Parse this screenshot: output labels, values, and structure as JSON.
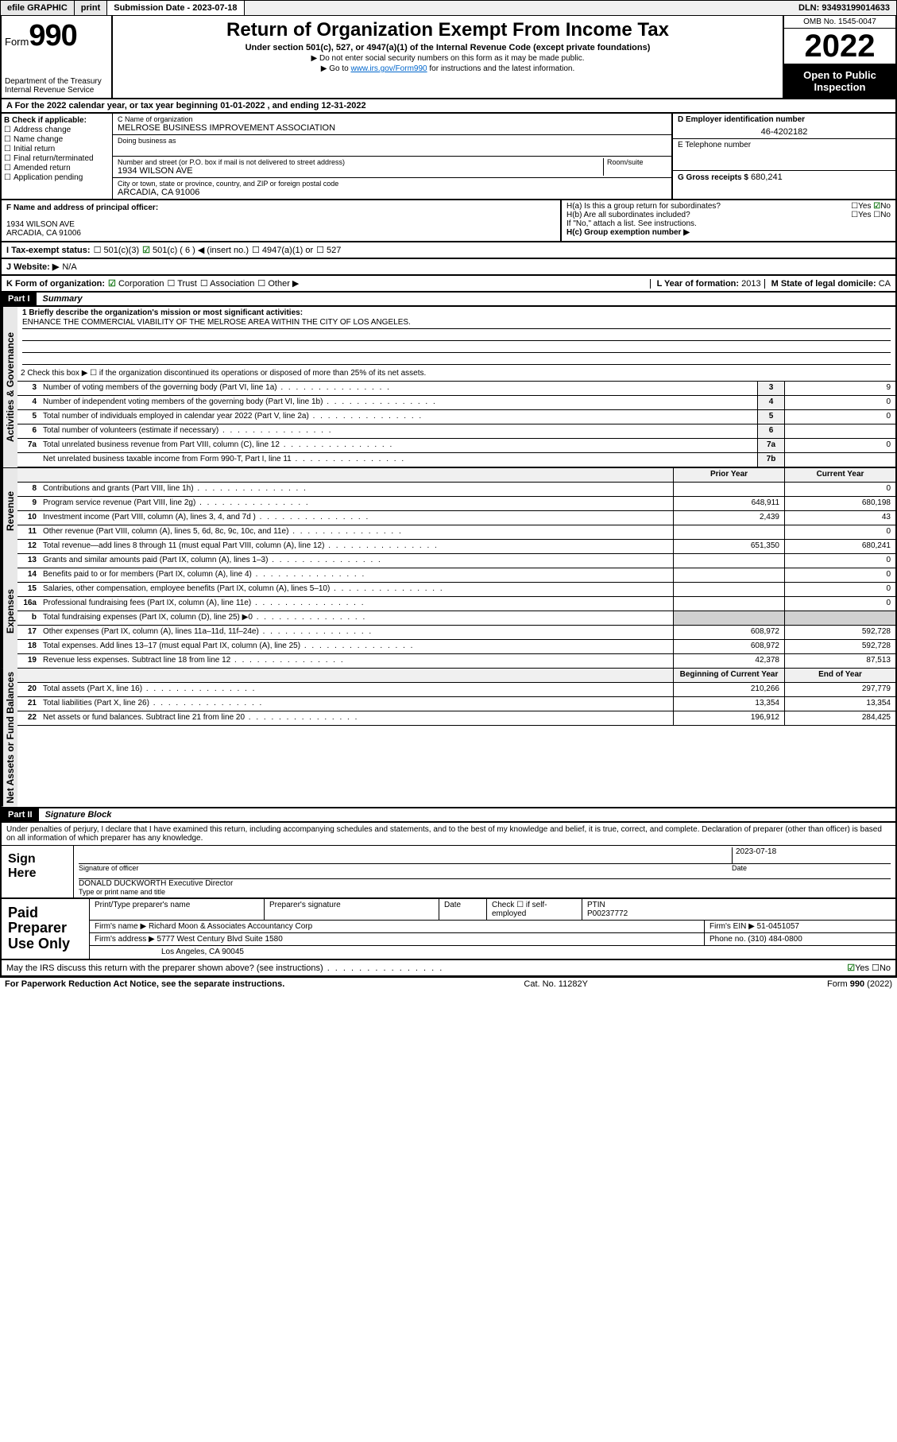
{
  "topbar": {
    "efile": "efile GRAPHIC",
    "print": "print",
    "submission_label": "Submission Date - 2023-07-18",
    "dln": "DLN: 93493199014633"
  },
  "header": {
    "form_word": "Form",
    "form_num": "990",
    "dept": "Department of the Treasury",
    "irs": "Internal Revenue Service",
    "title": "Return of Organization Exempt From Income Tax",
    "sub": "Under section 501(c), 527, or 4947(a)(1) of the Internal Revenue Code (except private foundations)",
    "note1": "▶ Do not enter social security numbers on this form as it may be made public.",
    "note2_pre": "▶ Go to ",
    "note2_link": "www.irs.gov/Form990",
    "note2_post": " for instructions and the latest information.",
    "omb": "OMB No. 1545-0047",
    "year": "2022",
    "inspect": "Open to Public Inspection"
  },
  "rowA": "A For the 2022 calendar year, or tax year beginning 01-01-2022    , and ending 12-31-2022",
  "colB": {
    "label": "B Check if applicable:",
    "opts": [
      "Address change",
      "Name change",
      "Initial return",
      "Final return/terminated",
      "Amended return",
      "Application pending"
    ]
  },
  "colC": {
    "name_lbl": "C Name of organization",
    "name": "MELROSE BUSINESS IMPROVEMENT ASSOCIATION",
    "dba_lbl": "Doing business as",
    "addr_lbl": "Number and street (or P.O. box if mail is not delivered to street address)",
    "room_lbl": "Room/suite",
    "addr": "1934 WILSON AVE",
    "city_lbl": "City or town, state or province, country, and ZIP or foreign postal code",
    "city": "ARCADIA, CA  91006"
  },
  "colD": {
    "d_lbl": "D Employer identification number",
    "ein": "46-4202182",
    "e_lbl": "E Telephone number",
    "g_lbl": "G Gross receipts $",
    "g_val": "680,241"
  },
  "rowF": {
    "f_lbl": "F Name and address of principal officer:",
    "addr1": "1934 WILSON AVE",
    "addr2": "ARCADIA, CA  91006",
    "ha": "H(a) Is this a group return for subordinates?",
    "hb": "H(b) Are all subordinates included?",
    "hb_note": "If \"No,\" attach a list. See instructions.",
    "hc": "H(c) Group exemption number ▶",
    "yes": "Yes",
    "no": "No"
  },
  "rowI": {
    "lbl": "I Tax-exempt status:",
    "o1": "501(c)(3)",
    "o2": "501(c) ( 6 ) ◀ (insert no.)",
    "o3": "4947(a)(1) or",
    "o4": "527"
  },
  "rowJ": {
    "lbl": "J Website: ▶",
    "val": "N/A"
  },
  "rowK": {
    "lbl": "K Form of organization:",
    "opts": [
      "Corporation",
      "Trust",
      "Association",
      "Other ▶"
    ],
    "l_lbl": "L Year of formation:",
    "l_val": "2013",
    "m_lbl": "M State of legal domicile:",
    "m_val": "CA"
  },
  "part1": {
    "hdr": "Part I",
    "title": "Summary"
  },
  "summary": {
    "line1_lbl": "1  Briefly describe the organization's mission or most significant activities:",
    "line1_val": "ENHANCE THE COMMERCIAL VIABILITY OF THE MELROSE AREA WITHIN THE CITY OF LOS ANGELES.",
    "line2": "2  Check this box ▶ ☐  if the organization discontinued its operations or disposed of more than 25% of its net assets.",
    "rows_gov": [
      {
        "n": "3",
        "d": "Number of voting members of the governing body (Part VI, line 1a)",
        "c": "3",
        "v": "9"
      },
      {
        "n": "4",
        "d": "Number of independent voting members of the governing body (Part VI, line 1b)",
        "c": "4",
        "v": "0"
      },
      {
        "n": "5",
        "d": "Total number of individuals employed in calendar year 2022 (Part V, line 2a)",
        "c": "5",
        "v": "0"
      },
      {
        "n": "6",
        "d": "Total number of volunteers (estimate if necessary)",
        "c": "6",
        "v": ""
      },
      {
        "n": "7a",
        "d": "Total unrelated business revenue from Part VIII, column (C), line 12",
        "c": "7a",
        "v": "0"
      },
      {
        "n": "",
        "d": "Net unrelated business taxable income from Form 990-T, Part I, line 11",
        "c": "7b",
        "v": ""
      }
    ],
    "col_prior": "Prior Year",
    "col_current": "Current Year",
    "rows_rev": [
      {
        "n": "8",
        "d": "Contributions and grants (Part VIII, line 1h)",
        "p": "",
        "c": "0"
      },
      {
        "n": "9",
        "d": "Program service revenue (Part VIII, line 2g)",
        "p": "648,911",
        "c": "680,198"
      },
      {
        "n": "10",
        "d": "Investment income (Part VIII, column (A), lines 3, 4, and 7d )",
        "p": "2,439",
        "c": "43"
      },
      {
        "n": "11",
        "d": "Other revenue (Part VIII, column (A), lines 5, 6d, 8c, 9c, 10c, and 11e)",
        "p": "",
        "c": "0"
      },
      {
        "n": "12",
        "d": "Total revenue—add lines 8 through 11 (must equal Part VIII, column (A), line 12)",
        "p": "651,350",
        "c": "680,241"
      }
    ],
    "rows_exp": [
      {
        "n": "13",
        "d": "Grants and similar amounts paid (Part IX, column (A), lines 1–3)",
        "p": "",
        "c": "0"
      },
      {
        "n": "14",
        "d": "Benefits paid to or for members (Part IX, column (A), line 4)",
        "p": "",
        "c": "0"
      },
      {
        "n": "15",
        "d": "Salaries, other compensation, employee benefits (Part IX, column (A), lines 5–10)",
        "p": "",
        "c": "0"
      },
      {
        "n": "16a",
        "d": "Professional fundraising fees (Part IX, column (A), line 11e)",
        "p": "",
        "c": "0"
      },
      {
        "n": "b",
        "d": "Total fundraising expenses (Part IX, column (D), line 25) ▶0",
        "p": "shade",
        "c": "shade"
      },
      {
        "n": "17",
        "d": "Other expenses (Part IX, column (A), lines 11a–11d, 11f–24e)",
        "p": "608,972",
        "c": "592,728"
      },
      {
        "n": "18",
        "d": "Total expenses. Add lines 13–17 (must equal Part IX, column (A), line 25)",
        "p": "608,972",
        "c": "592,728"
      },
      {
        "n": "19",
        "d": "Revenue less expenses. Subtract line 18 from line 12",
        "p": "42,378",
        "c": "87,513"
      }
    ],
    "col_begin": "Beginning of Current Year",
    "col_end": "End of Year",
    "rows_net": [
      {
        "n": "20",
        "d": "Total assets (Part X, line 16)",
        "p": "210,266",
        "c": "297,779"
      },
      {
        "n": "21",
        "d": "Total liabilities (Part X, line 26)",
        "p": "13,354",
        "c": "13,354"
      },
      {
        "n": "22",
        "d": "Net assets or fund balances. Subtract line 21 from line 20",
        "p": "196,912",
        "c": "284,425"
      }
    ]
  },
  "vtabs": {
    "gov": "Activities & Governance",
    "rev": "Revenue",
    "exp": "Expenses",
    "net": "Net Assets or Fund Balances"
  },
  "part2": {
    "hdr": "Part II",
    "title": "Signature Block"
  },
  "penalty": "Under penalties of perjury, I declare that I have examined this return, including accompanying schedules and statements, and to the best of my knowledge and belief, it is true, correct, and complete. Declaration of preparer (other than officer) is based on all information of which preparer has any knowledge.",
  "sign": {
    "here": "Sign Here",
    "sig_lbl": "Signature of officer",
    "date_lbl": "Date",
    "date_val": "2023-07-18",
    "name": "DONALD DUCKWORTH  Executive Director",
    "name_lbl": "Type or print name and title"
  },
  "prep": {
    "lbl": "Paid Preparer Use Only",
    "r1a": "Print/Type preparer's name",
    "r1b": "Preparer's signature",
    "r1c": "Date",
    "r1d_chk": "Check ☐ if self-employed",
    "r1e_lbl": "PTIN",
    "r1e_val": "P00237772",
    "r2a": "Firm's name   ▶",
    "r2a_val": "Richard Moon & Associates Accountancy Corp",
    "r2b": "Firm's EIN ▶",
    "r2b_val": "51-0451057",
    "r3a": "Firm's address ▶",
    "r3a_val": "5777 West Century Blvd Suite 1580",
    "r3b": "Phone no.",
    "r3b_val": "(310) 484-0800",
    "r4": "Los Angeles, CA  90045"
  },
  "discuss": {
    "q": "May the IRS discuss this return with the preparer shown above? (see instructions)",
    "yes": "Yes",
    "no": "No"
  },
  "footer": {
    "left": "For Paperwork Reduction Act Notice, see the separate instructions.",
    "mid": "Cat. No. 11282Y",
    "right_pre": "Form ",
    "right_num": "990",
    "right_post": " (2022)"
  }
}
